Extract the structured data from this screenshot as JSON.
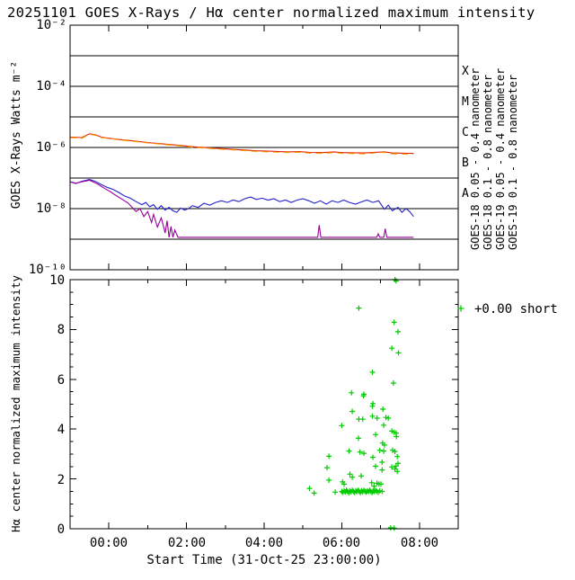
{
  "title": "20251101 GOES X-Rays / Hα center normalized maximum intensity",
  "colors": {
    "blue": "#2222cc",
    "red": "#dd2200",
    "purple": "#990099",
    "orange": "#ff9900",
    "green": "#00cc00",
    "axis": "#000000",
    "background": "#ffffff"
  },
  "x_axis": {
    "label": "Start Time (31-Oct-25 23:00:00)",
    "tick_labels": [
      "00:00",
      "02:00",
      "04:00",
      "06:00",
      "08:00"
    ],
    "tick_hours": [
      1,
      3,
      5,
      7,
      9
    ],
    "range_hours": [
      0,
      10
    ],
    "start_clock": "23:00"
  },
  "top_panel": {
    "ylabel": "GOES X-Rays Watts m⁻²",
    "ytick_labels": [
      "10⁻²",
      "10⁻⁴",
      "10⁻⁶",
      "10⁻⁸",
      "10⁻¹⁰"
    ],
    "ytick_exponents": [
      2,
      4,
      6,
      8,
      10
    ],
    "gridline_exponents": [
      3,
      4,
      5,
      6,
      7,
      8,
      9
    ],
    "class_labels": [
      {
        "label": "X",
        "exp_mid": 3.5
      },
      {
        "label": "M",
        "exp_mid": 4.5
      },
      {
        "label": "C",
        "exp_mid": 5.5
      },
      {
        "label": "B",
        "exp_mid": 6.5
      },
      {
        "label": "A",
        "exp_mid": 7.5
      }
    ],
    "legend": [
      {
        "label": "GOES-18 0.05 - 0.4 nanometer",
        "color": "#2222cc"
      },
      {
        "label": "GOES-18 0.1 - 0.8 nanometer",
        "color": "#dd2200"
      },
      {
        "label": "GOES-19 0.05 - 0.4 nanometer",
        "color": "#990099"
      },
      {
        "label": "GOES-19 0.1 - 0.8 nanometer",
        "color": "#ff9900"
      }
    ]
  },
  "bottom_panel": {
    "ylabel": "Hα center normalized maximum intensity",
    "ytick_labels": [
      "0",
      "2",
      "4",
      "6",
      "8",
      "10"
    ],
    "ytick_values": [
      0,
      2,
      4,
      6,
      8,
      10
    ],
    "legend_marker": "+",
    "legend_text": "+0.00 short"
  },
  "chart_data": [
    {
      "type": "line",
      "title": "GOES X-Rays",
      "x_unit": "hours after 31-Oct-25 23:00",
      "ylabel": "GOES X-Rays Watts m⁻²",
      "y_scale": "log",
      "ylim": [
        1e-10,
        0.01
      ],
      "xlim_hours": [
        0,
        10
      ],
      "grid": "horizontal decade lines",
      "legend_position": "right, rotated",
      "series": [
        {
          "name": "GOES-18 0.05 - 0.4 nanometer",
          "color": "#2222cc",
          "dashed": false,
          "points": [
            [
              0.0,
              7.5e-08
            ],
            [
              0.15,
              6.6e-08
            ],
            [
              0.3,
              7.8e-08
            ],
            [
              0.5,
              9e-08
            ],
            [
              0.65,
              7.8e-08
            ],
            [
              0.8,
              6.2e-08
            ],
            [
              0.95,
              5e-08
            ],
            [
              1.1,
              4.3e-08
            ],
            [
              1.25,
              3.4e-08
            ],
            [
              1.4,
              2.6e-08
            ],
            [
              1.55,
              2.2e-08
            ],
            [
              1.7,
              1.7e-08
            ],
            [
              1.85,
              1.35e-08
            ],
            [
              1.95,
              1.6e-08
            ],
            [
              2.05,
              1.15e-08
            ],
            [
              2.15,
              1.35e-08
            ],
            [
              2.25,
              9.5e-09
            ],
            [
              2.35,
              1.25e-08
            ],
            [
              2.45,
              9e-09
            ],
            [
              2.55,
              1.1e-08
            ],
            [
              2.65,
              8.5e-09
            ],
            [
              2.75,
              7.6e-09
            ],
            [
              2.85,
              1.05e-08
            ],
            [
              2.95,
              9e-09
            ],
            [
              3.05,
              1e-08
            ],
            [
              3.15,
              1.25e-08
            ],
            [
              3.3,
              1.1e-08
            ],
            [
              3.45,
              1.5e-08
            ],
            [
              3.6,
              1.3e-08
            ],
            [
              3.75,
              1.6e-08
            ],
            [
              3.9,
              1.8e-08
            ],
            [
              4.05,
              1.6e-08
            ],
            [
              4.2,
              1.9e-08
            ],
            [
              4.35,
              1.7e-08
            ],
            [
              4.5,
              2.1e-08
            ],
            [
              4.65,
              2.4e-08
            ],
            [
              4.8,
              2e-08
            ],
            [
              4.95,
              2.2e-08
            ],
            [
              5.1,
              1.9e-08
            ],
            [
              5.25,
              2.1e-08
            ],
            [
              5.4,
              1.7e-08
            ],
            [
              5.55,
              1.9e-08
            ],
            [
              5.7,
              1.6e-08
            ],
            [
              5.85,
              1.9e-08
            ],
            [
              6.0,
              2.1e-08
            ],
            [
              6.15,
              1.8e-08
            ],
            [
              6.3,
              1.5e-08
            ],
            [
              6.45,
              1.8e-08
            ],
            [
              6.6,
              1.4e-08
            ],
            [
              6.75,
              1.8e-08
            ],
            [
              6.9,
              1.6e-08
            ],
            [
              7.05,
              1.9e-08
            ],
            [
              7.2,
              1.6e-08
            ],
            [
              7.35,
              1.4e-08
            ],
            [
              7.5,
              1.65e-08
            ],
            [
              7.65,
              1.9e-08
            ],
            [
              7.8,
              1.6e-08
            ],
            [
              7.95,
              1.8e-08
            ],
            [
              8.1,
              9.5e-09
            ],
            [
              8.2,
              1.3e-08
            ],
            [
              8.3,
              8.5e-09
            ],
            [
              8.45,
              1.1e-08
            ],
            [
              8.55,
              7.5e-09
            ],
            [
              8.65,
              1e-08
            ],
            [
              8.75,
              8e-09
            ],
            [
              8.85,
              5.5e-09
            ]
          ]
        },
        {
          "name": "GOES-18 0.1 - 0.8 nanometer",
          "color": "#dd2200",
          "dashed": false,
          "points": [
            [
              0.0,
              2.2e-06
            ],
            [
              0.3,
              2.1e-06
            ],
            [
              0.5,
              2.8e-06
            ],
            [
              0.65,
              2.6e-06
            ],
            [
              0.8,
              2.2e-06
            ],
            [
              1.0,
              2e-06
            ],
            [
              1.3,
              1.8e-06
            ],
            [
              1.6,
              1.65e-06
            ],
            [
              2.0,
              1.45e-06
            ],
            [
              2.4,
              1.3e-06
            ],
            [
              2.8,
              1.18e-06
            ],
            [
              3.2,
              1.05e-06
            ],
            [
              3.6,
              9.7e-07
            ],
            [
              4.0,
              9e-07
            ],
            [
              4.4,
              8.4e-07
            ],
            [
              4.8,
              7.8e-07
            ],
            [
              5.2,
              7.5e-07
            ],
            [
              5.6,
              7.2e-07
            ],
            [
              5.9,
              7.3e-07
            ],
            [
              6.2,
              6.9e-07
            ],
            [
              6.5,
              6.8e-07
            ],
            [
              6.8,
              7.2e-07
            ],
            [
              7.0,
              6.8e-07
            ],
            [
              7.3,
              6.7e-07
            ],
            [
              7.6,
              6.6e-07
            ],
            [
              7.9,
              7e-07
            ],
            [
              8.1,
              7.2e-07
            ],
            [
              8.3,
              6.6e-07
            ],
            [
              8.6,
              6.5e-07
            ],
            [
              8.85,
              6.4e-07
            ]
          ]
        },
        {
          "name": "GOES-19 0.05 - 0.4 nanometer",
          "color": "#990099",
          "dashed": false,
          "points": [
            [
              0.0,
              7.5e-08
            ],
            [
              0.15,
              6.8e-08
            ],
            [
              0.3,
              7.5e-08
            ],
            [
              0.5,
              8.5e-08
            ],
            [
              0.7,
              6.5e-08
            ],
            [
              0.9,
              4.5e-08
            ],
            [
              1.05,
              3.5e-08
            ],
            [
              1.2,
              2.6e-08
            ],
            [
              1.35,
              2e-08
            ],
            [
              1.5,
              1.5e-08
            ],
            [
              1.6,
              1.1e-08
            ],
            [
              1.7,
              8e-09
            ],
            [
              1.8,
              1e-08
            ],
            [
              1.9,
              5.5e-09
            ],
            [
              2.0,
              8e-09
            ],
            [
              2.1,
              3.5e-09
            ],
            [
              2.15,
              6.5e-09
            ],
            [
              2.25,
              2.5e-09
            ],
            [
              2.35,
              5e-09
            ],
            [
              2.45,
              1.6e-09
            ],
            [
              2.5,
              4e-09
            ],
            [
              2.55,
              1.15e-09
            ],
            [
              2.6,
              2.6e-09
            ],
            [
              2.65,
              1.15e-09
            ],
            [
              2.7,
              2e-09
            ],
            [
              2.78,
              1.15e-09
            ],
            [
              6.38,
              1.15e-09
            ],
            [
              6.42,
              2.9e-09
            ],
            [
              6.46,
              1.15e-09
            ],
            [
              7.9,
              1.15e-09
            ],
            [
              7.94,
              1.5e-09
            ],
            [
              7.98,
              1.15e-09
            ],
            [
              8.08,
              1.15e-09
            ],
            [
              8.12,
              2.2e-09
            ],
            [
              8.16,
              1.15e-09
            ],
            [
              8.85,
              1.15e-09
            ]
          ]
        },
        {
          "name": "GOES-19 0.1 - 0.8 nanometer",
          "color": "#ff9900",
          "dashed": true,
          "points": [
            [
              0.0,
              2.1e-06
            ],
            [
              0.3,
              2e-06
            ],
            [
              0.5,
              2.7e-06
            ],
            [
              0.65,
              2.5e-06
            ],
            [
              0.8,
              2.1e-06
            ],
            [
              1.0,
              1.95e-06
            ],
            [
              1.3,
              1.75e-06
            ],
            [
              1.6,
              1.6e-06
            ],
            [
              2.0,
              1.4e-06
            ],
            [
              2.4,
              1.26e-06
            ],
            [
              2.8,
              1.14e-06
            ],
            [
              3.2,
              1e-06
            ],
            [
              3.6,
              9.3e-07
            ],
            [
              4.0,
              8.6e-07
            ],
            [
              4.4,
              8e-07
            ],
            [
              4.8,
              7.4e-07
            ],
            [
              5.2,
              7.1e-07
            ],
            [
              5.6,
              6.8e-07
            ],
            [
              5.9,
              7e-07
            ],
            [
              6.2,
              6.5e-07
            ],
            [
              6.5,
              6.4e-07
            ],
            [
              6.8,
              6.8e-07
            ],
            [
              7.0,
              6.4e-07
            ],
            [
              7.3,
              6.3e-07
            ],
            [
              7.6,
              6.2e-07
            ],
            [
              7.9,
              6.7e-07
            ],
            [
              8.1,
              6.9e-07
            ],
            [
              8.3,
              6.2e-07
            ],
            [
              8.6,
              6.1e-07
            ],
            [
              8.85,
              6e-07
            ]
          ]
        }
      ]
    },
    {
      "type": "scatter",
      "title": "Hα center normalized maximum intensity",
      "marker": "+",
      "color": "#00cc00",
      "x_unit": "hours after 31-Oct-25 23:00",
      "ylim": [
        0,
        10
      ],
      "xlim_hours": [
        0,
        10
      ],
      "legend": "+0.00 short",
      "points": [
        [
          7.0,
          1.5
        ],
        [
          7.03,
          1.46
        ],
        [
          7.06,
          1.52
        ],
        [
          7.09,
          1.48
        ],
        [
          7.12,
          1.55
        ],
        [
          7.15,
          1.5
        ],
        [
          7.18,
          1.44
        ],
        [
          7.21,
          1.52
        ],
        [
          7.24,
          1.48
        ],
        [
          7.27,
          1.54
        ],
        [
          7.3,
          1.5
        ],
        [
          7.33,
          1.46
        ],
        [
          7.36,
          1.52
        ],
        [
          7.39,
          1.49
        ],
        [
          7.42,
          1.55
        ],
        [
          7.45,
          1.5
        ],
        [
          7.48,
          1.46
        ],
        [
          7.51,
          1.52
        ],
        [
          7.54,
          1.48
        ],
        [
          7.57,
          1.54
        ],
        [
          7.6,
          1.5
        ],
        [
          7.63,
          1.47
        ],
        [
          7.66,
          1.52
        ],
        [
          7.69,
          1.49
        ],
        [
          7.72,
          1.55
        ],
        [
          7.75,
          1.5
        ],
        [
          7.78,
          1.46
        ],
        [
          7.81,
          1.52
        ],
        [
          7.84,
          1.49
        ],
        [
          7.87,
          1.54
        ],
        [
          7.9,
          1.5
        ],
        [
          7.94,
          1.47
        ],
        [
          7.98,
          1.52
        ],
        [
          8.04,
          1.5
        ],
        [
          6.17,
          1.62
        ],
        [
          6.29,
          1.43
        ],
        [
          6.62,
          2.45
        ],
        [
          6.67,
          2.91
        ],
        [
          6.67,
          1.95
        ],
        [
          6.83,
          1.47
        ],
        [
          7.02,
          1.88
        ],
        [
          7.06,
          1.79
        ],
        [
          7.19,
          3.12
        ],
        [
          7.21,
          2.19
        ],
        [
          7.27,
          2.07
        ],
        [
          7.43,
          3.63
        ],
        [
          7.47,
          3.08
        ],
        [
          7.5,
          2.12
        ],
        [
          7.57,
          3.03
        ],
        [
          7.77,
          1.85
        ],
        [
          7.8,
          2.87
        ],
        [
          7.83,
          1.71
        ],
        [
          7.87,
          2.51
        ],
        [
          7.91,
          1.83
        ],
        [
          7.96,
          1.79
        ],
        [
          7.98,
          3.15
        ],
        [
          8.01,
          1.79
        ],
        [
          8.04,
          2.67
        ],
        [
          8.05,
          3.44
        ],
        [
          8.04,
          2.36
        ],
        [
          8.06,
          4.8
        ],
        [
          8.08,
          3.12
        ],
        [
          8.08,
          4.16
        ],
        [
          8.1,
          3.36
        ],
        [
          8.14,
          4.47
        ],
        [
          8.2,
          4.44
        ],
        [
          8.29,
          2.48
        ],
        [
          8.29,
          3.92
        ],
        [
          8.31,
          3.15
        ],
        [
          8.35,
          3.87
        ],
        [
          8.37,
          2.4
        ],
        [
          8.37,
          3.1
        ],
        [
          8.4,
          2.52
        ],
        [
          8.4,
          3.84
        ],
        [
          8.41,
          3.7
        ],
        [
          8.43,
          2.9
        ],
        [
          8.43,
          2.3
        ],
        [
          7.87,
          3.78
        ],
        [
          7.91,
          4.44
        ],
        [
          7.0,
          4.14
        ],
        [
          8.45,
          2.62
        ],
        [
          7.25,
          5.46
        ],
        [
          7.27,
          4.71
        ],
        [
          7.44,
          8.86
        ],
        [
          7.44,
          4.4
        ],
        [
          7.54,
          4.4
        ],
        [
          7.56,
          5.34
        ],
        [
          7.57,
          5.4
        ],
        [
          7.79,
          4.92
        ],
        [
          7.79,
          4.52
        ],
        [
          7.79,
          6.28
        ],
        [
          7.8,
          5.02
        ],
        [
          8.29,
          7.25
        ],
        [
          8.33,
          5.85
        ],
        [
          8.35,
          8.29
        ],
        [
          8.45,
          7.91
        ],
        [
          8.46,
          7.06
        ],
        [
          8.37,
          10.0
        ],
        [
          8.4,
          9.95
        ],
        [
          8.26,
          0.04
        ],
        [
          8.35,
          0.02
        ]
      ]
    }
  ]
}
